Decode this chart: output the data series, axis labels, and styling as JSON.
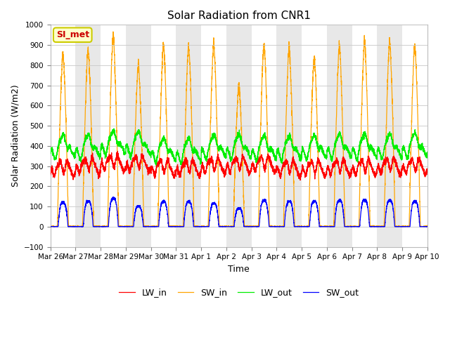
{
  "title": "Solar Radiation from CNR1",
  "xlabel": "Time",
  "ylabel": "Solar Radiation (W/m2)",
  "ylim": [
    -100,
    1000
  ],
  "yticks": [
    -100,
    0,
    100,
    200,
    300,
    400,
    500,
    600,
    700,
    800,
    900,
    1000
  ],
  "annotation_text": "SI_met",
  "annotation_color": "#CC0000",
  "annotation_bg": "#FFFFCC",
  "annotation_edge": "#CCCC00",
  "colors": {
    "LW_in": "#FF0000",
    "SW_in": "#FFA500",
    "LW_out": "#00EE00",
    "SW_out": "#0000FF"
  },
  "band_colors": [
    "#FFFFFF",
    "#E8E8E8"
  ],
  "figsize": [
    6.4,
    4.8
  ],
  "dpi": 100,
  "n_days": 15,
  "date_labels": [
    "Mar 26",
    "Mar 27",
    "Mar 28",
    "Mar 29",
    "Mar 30",
    "Mar 31",
    "Apr 1",
    "Apr 2",
    "Apr 3",
    "Apr 4",
    "Apr 5",
    "Apr 6",
    "Apr 7",
    "Apr 8",
    "Apr 9",
    "Apr 10"
  ],
  "sw_peaks": [
    860,
    880,
    950,
    800,
    905,
    900,
    910,
    700,
    910,
    895,
    840,
    900,
    920,
    920,
    905
  ],
  "lw_in_base": [
    245,
    260,
    275,
    270,
    250,
    250,
    260,
    265,
    270,
    248,
    248,
    252,
    252,
    260,
    258
  ],
  "lw_out_base": [
    355,
    355,
    375,
    370,
    340,
    338,
    355,
    355,
    350,
    348,
    352,
    357,
    357,
    357,
    362
  ],
  "sw_out_peaks": [
    120,
    125,
    140,
    100,
    125,
    125,
    115,
    90,
    130,
    125,
    125,
    130,
    130,
    130,
    125
  ],
  "background_color": "#FFFFFF",
  "grid_color": "#C8C8C8",
  "linewidth": 0.9
}
